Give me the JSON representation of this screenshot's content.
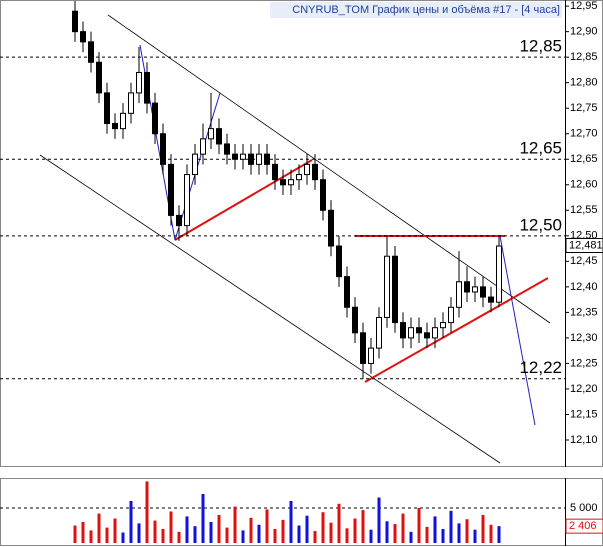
{
  "chart_data": [
    {
      "type": "candlestick",
      "title": "CNYRUB_TOM График цены и объёма #17 - [4 часа]",
      "ylim": [
        12.051,
        12.962
      ],
      "yticks": [
        {
          "value": 12.1,
          "label": "12,10"
        },
        {
          "value": 12.15,
          "label": "12,15"
        },
        {
          "value": 12.2,
          "label": "12,20"
        },
        {
          "value": 12.25,
          "label": "12,25"
        },
        {
          "value": 12.3,
          "label": "12,30"
        },
        {
          "value": 12.35,
          "label": "12,35"
        },
        {
          "value": 12.4,
          "label": "12,40"
        },
        {
          "value": 12.45,
          "label": "12,45"
        },
        {
          "value": 12.5,
          "label": "12,50"
        },
        {
          "value": 12.55,
          "label": "12,55"
        },
        {
          "value": 12.6,
          "label": "12,60"
        },
        {
          "value": 12.65,
          "label": "12,65"
        },
        {
          "value": 12.7,
          "label": "12,70"
        },
        {
          "value": 12.75,
          "label": "12,75"
        },
        {
          "value": 12.8,
          "label": "12,80"
        },
        {
          "value": 12.85,
          "label": "12,85"
        },
        {
          "value": 12.9,
          "label": "12,90"
        },
        {
          "value": 12.95,
          "label": "12,95"
        }
      ],
      "levels": [
        {
          "value": 12.85,
          "label": "12,85"
        },
        {
          "value": 12.65,
          "label": "12,65"
        },
        {
          "value": 12.5,
          "label": "12,50"
        },
        {
          "value": 12.22,
          "label": "12,22"
        }
      ],
      "last_price": {
        "value": 12.481,
        "label": "12,481"
      },
      "color": "#000000",
      "open": [
        12.94,
        12.9,
        12.88,
        12.84,
        12.78,
        12.72,
        12.71,
        12.74,
        12.78,
        12.82,
        12.76,
        12.7,
        12.64,
        12.54,
        12.52,
        12.62,
        12.66,
        12.69,
        12.71,
        12.68,
        12.66,
        12.65,
        12.66,
        12.64,
        12.66,
        12.64,
        12.61,
        12.6,
        12.61,
        12.62,
        12.64,
        12.61,
        12.55,
        12.48,
        12.42,
        12.36,
        12.31,
        12.25,
        12.28,
        12.34,
        12.46,
        12.33,
        12.3,
        12.32,
        12.31,
        12.3,
        12.32,
        12.33,
        12.36,
        12.41,
        12.39,
        12.4,
        12.38,
        12.37
      ],
      "high": [
        12.96,
        12.92,
        12.9,
        12.86,
        12.8,
        12.74,
        12.76,
        12.8,
        12.87,
        12.84,
        12.78,
        12.72,
        12.66,
        12.56,
        12.64,
        12.68,
        12.72,
        12.78,
        12.73,
        12.7,
        12.68,
        12.68,
        12.68,
        12.68,
        12.68,
        12.66,
        12.63,
        12.63,
        12.64,
        12.66,
        12.66,
        12.63,
        12.57,
        12.5,
        12.44,
        12.38,
        12.33,
        12.3,
        12.36,
        12.5,
        12.48,
        12.35,
        12.34,
        12.34,
        12.33,
        12.34,
        12.35,
        12.38,
        12.47,
        12.44,
        12.42,
        12.42,
        12.4,
        12.5
      ],
      "low": [
        12.88,
        12.86,
        12.82,
        12.76,
        12.7,
        12.69,
        12.69,
        12.72,
        12.76,
        12.74,
        12.68,
        12.62,
        12.52,
        12.49,
        12.5,
        12.6,
        12.64,
        12.67,
        12.66,
        12.64,
        12.63,
        12.63,
        12.62,
        12.62,
        12.62,
        12.59,
        12.58,
        12.58,
        12.59,
        12.6,
        12.59,
        12.53,
        12.46,
        12.4,
        12.34,
        12.29,
        12.22,
        12.23,
        12.26,
        12.32,
        12.31,
        12.28,
        12.28,
        12.29,
        12.28,
        12.28,
        12.3,
        12.31,
        12.34,
        12.37,
        12.37,
        12.36,
        12.35,
        12.36
      ],
      "close": [
        12.9,
        12.88,
        12.84,
        12.78,
        12.72,
        12.71,
        12.74,
        12.78,
        12.82,
        12.76,
        12.7,
        12.64,
        12.54,
        12.52,
        12.62,
        12.66,
        12.69,
        12.71,
        12.68,
        12.66,
        12.65,
        12.66,
        12.64,
        12.66,
        12.64,
        12.61,
        12.6,
        12.61,
        12.62,
        12.64,
        12.61,
        12.55,
        12.48,
        12.42,
        12.36,
        12.31,
        12.25,
        12.28,
        12.34,
        12.46,
        12.33,
        12.3,
        12.32,
        12.31,
        12.3,
        12.32,
        12.33,
        12.36,
        12.41,
        12.39,
        12.4,
        12.38,
        12.37,
        12.48
      ]
    },
    {
      "type": "bar",
      "ylim": [
        0,
        9000
      ],
      "yticks": [
        {
          "value": 5000,
          "label": "5 000"
        }
      ],
      "up_color": "#1010e0",
      "down_color": "#e01010",
      "values": [
        2500,
        3000,
        1800,
        4200,
        2200,
        3500,
        1500,
        6000,
        2800,
        8800,
        3200,
        2000,
        4500,
        1600,
        3800,
        2400,
        7000,
        3000,
        4000,
        2200,
        5200,
        1800,
        3600,
        2600,
        4800,
        2000,
        3300,
        6000,
        2500,
        3900,
        1700,
        4400,
        2900,
        5600,
        2100,
        3500,
        4700,
        1900,
        6500,
        3100,
        2700,
        4200,
        1600,
        5000,
        2300,
        3800,
        2000,
        4600,
        2800,
        3400,
        1900,
        4000,
        2600,
        2406
      ],
      "value_labels": {
        "53": "2 406"
      }
    }
  ]
}
